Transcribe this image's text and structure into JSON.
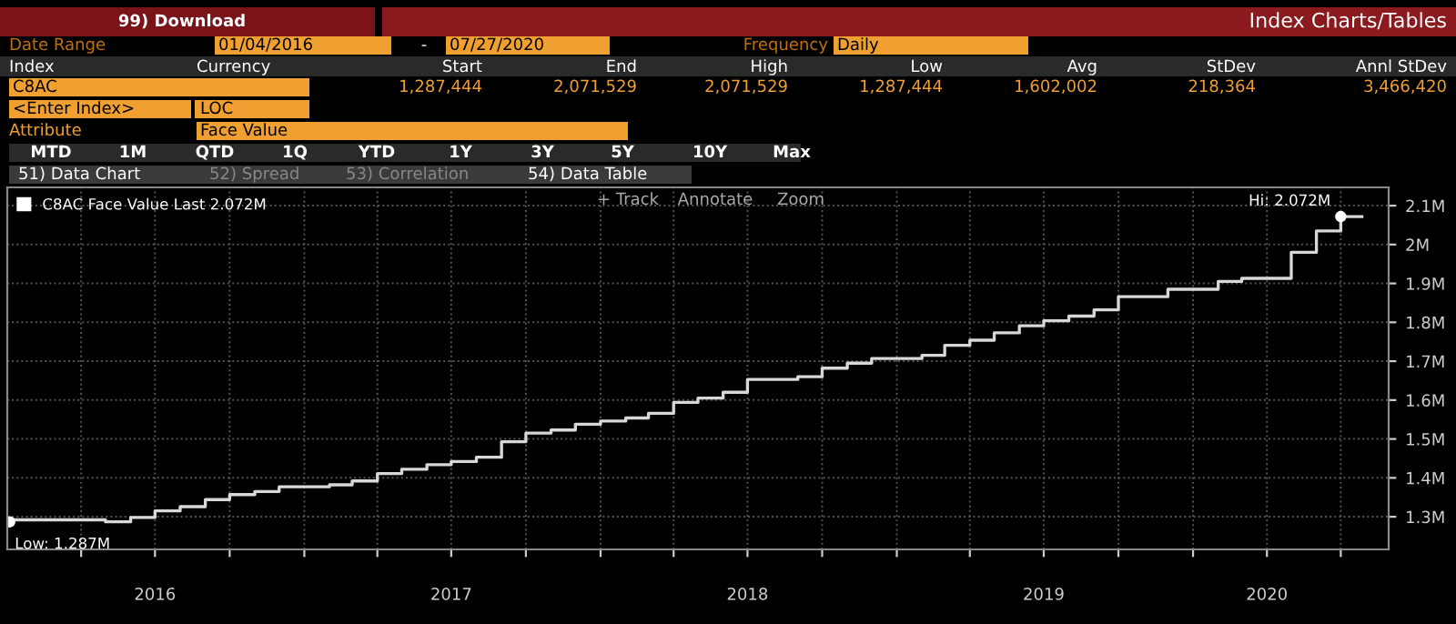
{
  "chart_data": {
    "type": "step",
    "title": "Index Charts/Tables",
    "annotations": [
      "99) Download",
      "Date Range",
      "01/04/2016",
      "-",
      "07/27/2020",
      "Frequency",
      "Daily",
      "Index",
      "Currency",
      "Start",
      "End",
      "High",
      "Low",
      "Avg",
      "StDev",
      "Annl StDev",
      "C8AC",
      "1,287,444",
      "2,071,529",
      "2,071,529",
      "1,287,444",
      "1,602,002",
      "218,364",
      "3,466,420",
      "<Enter Index>",
      "LOC",
      "Attribute",
      "Face Value",
      "MTD",
      "1M",
      "QTD",
      "1Q",
      "YTD",
      "1Y",
      "3Y",
      "5Y",
      "10Y",
      "Max",
      "51) Data Chart",
      "52) Spread",
      "53) Correlation",
      "54) Data Table",
      "+ Track",
      "Annotate",
      "Zoom",
      {
        "text": "Low: 1.287M",
        "x": "2016-01-04",
        "y": 1.287
      },
      {
        "text": "Hi: 2.072M",
        "x": "2020-07-01",
        "y": 2.072
      }
    ],
    "series": [
      {
        "name": "C8AC Face Value Last 2.072M",
        "color": "#d8d8d8",
        "x": [
          "2016-01-04",
          "2016-01-08",
          "2016-05-01",
          "2016-06-01",
          "2016-07-01",
          "2016-08-01",
          "2016-09-01",
          "2016-10-01",
          "2016-11-01",
          "2016-12-01",
          "2017-02-01",
          "2017-03-01",
          "2017-04-01",
          "2017-05-01",
          "2017-06-01",
          "2017-07-01",
          "2017-08-01",
          "2017-09-01",
          "2017-10-01",
          "2017-11-01",
          "2017-12-01",
          "2018-01-01",
          "2018-02-01",
          "2018-03-01",
          "2018-04-01",
          "2018-05-01",
          "2018-06-01",
          "2018-07-01",
          "2018-09-01",
          "2018-10-01",
          "2018-11-01",
          "2018-12-01",
          "2019-02-01",
          "2019-03-01",
          "2019-04-01",
          "2019-05-01",
          "2019-06-01",
          "2019-07-01",
          "2019-08-01",
          "2019-09-01",
          "2019-10-01",
          "2019-12-01",
          "2020-02-01",
          "2020-03-01",
          "2020-05-01",
          "2020-06-01",
          "2020-07-01",
          "2020-07-27"
        ],
        "values": [
          1.287,
          1.292,
          1.287,
          1.298,
          1.315,
          1.326,
          1.344,
          1.357,
          1.365,
          1.377,
          1.382,
          1.392,
          1.411,
          1.422,
          1.434,
          1.442,
          1.453,
          1.493,
          1.515,
          1.523,
          1.538,
          1.546,
          1.554,
          1.566,
          1.594,
          1.605,
          1.62,
          1.653,
          1.66,
          1.682,
          1.695,
          1.707,
          1.715,
          1.741,
          1.754,
          1.773,
          1.791,
          1.804,
          1.816,
          1.832,
          1.866,
          1.885,
          1.905,
          1.913,
          1.98,
          2.035,
          2.072,
          2.072
        ]
      }
    ],
    "xlim": [
      "2016-01-01",
      "2020-08-29"
    ],
    "xticks": [
      {
        "value": "2016-04-01",
        "label": null
      },
      {
        "value": "2016-07-01",
        "label": "2016"
      },
      {
        "value": "2016-10-01",
        "label": null
      },
      {
        "value": "2017-01-01",
        "label": null
      },
      {
        "value": "2017-04-01",
        "label": null
      },
      {
        "value": "2017-07-01",
        "label": "2017"
      },
      {
        "value": "2017-10-01",
        "label": null
      },
      {
        "value": "2018-01-01",
        "label": null
      },
      {
        "value": "2018-04-01",
        "label": null
      },
      {
        "value": "2018-07-01",
        "label": "2018"
      },
      {
        "value": "2018-10-01",
        "label": null
      },
      {
        "value": "2019-01-01",
        "label": null
      },
      {
        "value": "2019-04-01",
        "label": null
      },
      {
        "value": "2019-07-01",
        "label": "2019"
      },
      {
        "value": "2019-10-01",
        "label": null
      },
      {
        "value": "2020-01-01",
        "label": null
      },
      {
        "value": "2020-04-01",
        "label": "2020"
      },
      {
        "value": "2020-07-01",
        "label": null
      }
    ],
    "ylim": [
      1.216,
      2.147
    ],
    "yticks": [
      {
        "value": 1.3,
        "label": "1.3M"
      },
      {
        "value": 1.4,
        "label": "1.4M"
      },
      {
        "value": 1.5,
        "label": "1.5M"
      },
      {
        "value": 1.6,
        "label": "1.6M"
      },
      {
        "value": 1.7,
        "label": "1.7M"
      },
      {
        "value": 1.8,
        "label": "1.8M"
      },
      {
        "value": 1.9,
        "label": "1.9M"
      },
      {
        "value": 2.0,
        "label": "2M"
      },
      {
        "value": 2.1,
        "label": "2.1M"
      }
    ],
    "grid": true,
    "legend": "top left",
    "marker": "none",
    "line_style": "solid"
  }
}
